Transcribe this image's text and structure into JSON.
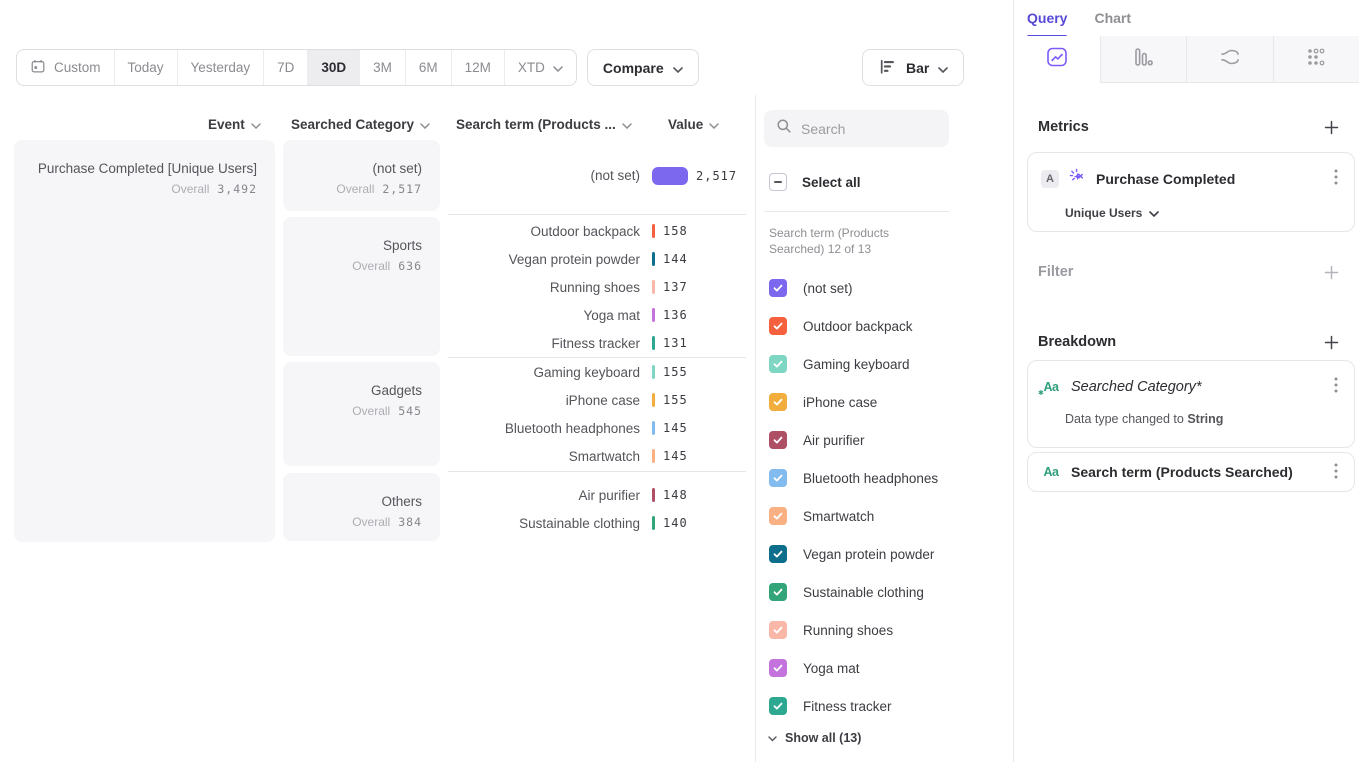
{
  "toolbar": {
    "date_ranges": [
      "Custom",
      "Today",
      "Yesterday",
      "7D",
      "30D",
      "3M",
      "6M",
      "12M",
      "XTD"
    ],
    "selected_range": "30D",
    "compare_label": "Compare",
    "chart_type": "Bar"
  },
  "columns": {
    "event": "Event",
    "category": "Searched Category",
    "term": "Search term (Products ...",
    "value": "Value"
  },
  "overall_label": "Overall",
  "event_card": {
    "title": "Purchase Completed [Unique Users]",
    "overall": "3,492"
  },
  "groups": [
    {
      "category": "(not set)",
      "overall": "2,517",
      "rows": [
        {
          "term": "(not set)",
          "value": "2,517",
          "color": "#7b68ee"
        }
      ]
    },
    {
      "category": "Sports",
      "overall": "636",
      "rows": [
        {
          "term": "Outdoor backpack",
          "value": "158",
          "color": "#f5613e"
        },
        {
          "term": "Vegan protein powder",
          "value": "144",
          "color": "#0e6f8c"
        },
        {
          "term": "Running shoes",
          "value": "137",
          "color": "#f8b7a7"
        },
        {
          "term": "Yoga mat",
          "value": "136",
          "color": "#c473dd"
        },
        {
          "term": "Fitness tracker",
          "value": "131",
          "color": "#2ea890"
        }
      ]
    },
    {
      "category": "Gadgets",
      "overall": "545",
      "rows": [
        {
          "term": "Gaming keyboard",
          "value": "155",
          "color": "#7fd6c2"
        },
        {
          "term": "iPhone case",
          "value": "155",
          "color": "#f2ae3d"
        },
        {
          "term": "Bluetooth headphones",
          "value": "145",
          "color": "#82bbee"
        },
        {
          "term": "Smartwatch",
          "value": "145",
          "color": "#f9b183"
        }
      ]
    },
    {
      "category": "Others",
      "overall": "384",
      "rows": [
        {
          "term": "Air purifier",
          "value": "148",
          "color": "#ae4f66"
        },
        {
          "term": "Sustainable clothing",
          "value": "140",
          "color": "#33a578"
        }
      ]
    }
  ],
  "filter_panel": {
    "search_placeholder": "Search",
    "select_all_label": "Select all",
    "select_all_state": "indeterminate",
    "list_label": "Search term (Products Searched) 12 of 13",
    "items": [
      {
        "label": "(not set)",
        "color": "#7b68ee",
        "checked": true
      },
      {
        "label": "Outdoor backpack",
        "color": "#f5613e",
        "checked": true
      },
      {
        "label": "Gaming keyboard",
        "color": "#7fd6c2",
        "checked": true
      },
      {
        "label": "iPhone case",
        "color": "#f2ae3d",
        "checked": true
      },
      {
        "label": "Air purifier",
        "color": "#ae4f66",
        "checked": true
      },
      {
        "label": "Bluetooth headphones",
        "color": "#82bbee",
        "checked": true
      },
      {
        "label": "Smartwatch",
        "color": "#f9b183",
        "checked": true
      },
      {
        "label": "Vegan protein powder",
        "color": "#0e6f8c",
        "checked": true
      },
      {
        "label": "Sustainable clothing",
        "color": "#33a578",
        "checked": true
      },
      {
        "label": "Running shoes",
        "color": "#f8b7a7",
        "checked": true
      },
      {
        "label": "Yoga mat",
        "color": "#c473dd",
        "checked": true
      },
      {
        "label": "Fitness tracker",
        "color": "#2ea890",
        "checked": true
      }
    ],
    "show_all_label": "Show all (13)"
  },
  "query_panel": {
    "tabs": {
      "query": "Query",
      "chart": "Chart"
    },
    "active_tab": "Query",
    "metrics_title": "Metrics",
    "metric_card": {
      "badge": "A",
      "event": "Purchase Completed",
      "measure": "Unique Users"
    },
    "filter_title": "Filter",
    "breakdown_title": "Breakdown",
    "breakdowns": [
      {
        "icon": "Aa",
        "label": "Searched Category*",
        "note": "Data type changed to ",
        "note_bold": "String"
      },
      {
        "icon": "Aa",
        "label": "Search term (Products Searched)"
      }
    ]
  },
  "accent_color": "#5649d8",
  "bar_accent": "#7b68ee"
}
